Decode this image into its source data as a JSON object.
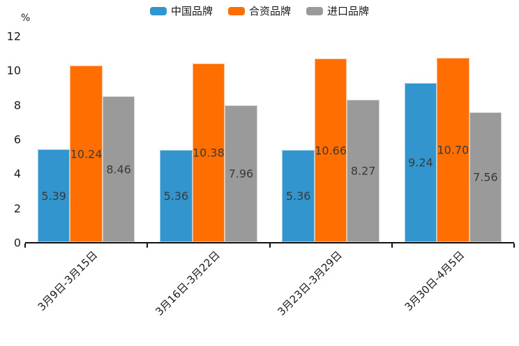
{
  "chart_data": {
    "type": "bar",
    "title": "",
    "ylabel": "%",
    "xlabel": "",
    "ylim": [
      0,
      12
    ],
    "yticks": [
      0,
      2,
      4,
      6,
      8,
      10,
      12
    ],
    "grid": false,
    "legend_position": "top-center",
    "categories": [
      "3月9日-3月15日",
      "3月16日-3月22日",
      "3月23日-3月29日",
      "3月30日-4月5日"
    ],
    "series": [
      {
        "name": "中国品牌",
        "color": "#3295CD",
        "values": [
          5.39,
          5.36,
          5.36,
          9.24
        ]
      },
      {
        "name": "合资品牌",
        "color": "#FF6E00",
        "values": [
          10.24,
          10.38,
          10.66,
          10.7
        ]
      },
      {
        "name": "进口品牌",
        "color": "#9A9A9A",
        "values": [
          8.46,
          7.96,
          8.27,
          7.56
        ]
      }
    ],
    "value_label_decimals": 2
  }
}
